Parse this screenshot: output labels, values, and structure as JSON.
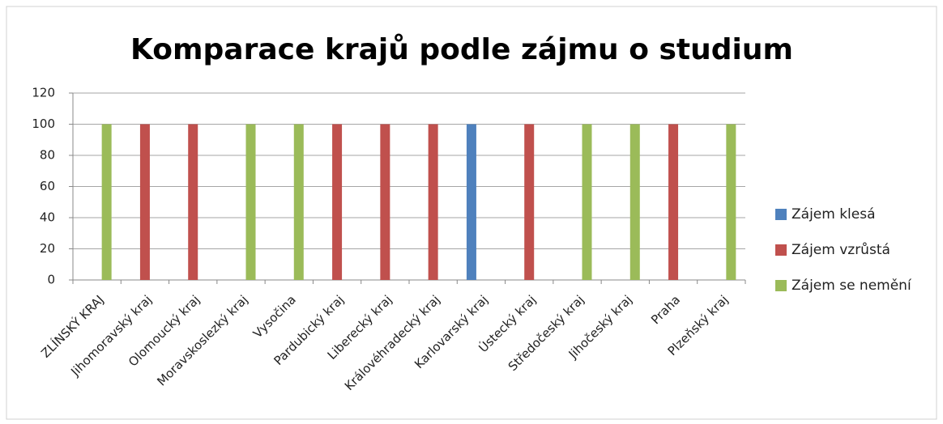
{
  "chart_data": {
    "type": "bar",
    "title": "Komparace krajů podle zájmu o studium",
    "categories": [
      "ZLÍNSKÝ KRAJ",
      "Jihomoravský kraj",
      "Olomoucký kraj",
      "Moravskoslezký kraj",
      "Vysočina",
      "Pardubický kraj",
      "Liberecký kraj",
      "Královéhradecký kraj",
      "Karlovarský kraj",
      "Ústecký kraj",
      "Středočeský kraj",
      "Jihočeský kraj",
      "Praha",
      "Plzeňský kraj"
    ],
    "series": [
      {
        "name": "Zájem klesá",
        "color": "#4f81bd",
        "values": [
          null,
          null,
          null,
          null,
          null,
          null,
          null,
          null,
          100,
          null,
          null,
          null,
          null,
          null
        ]
      },
      {
        "name": "Zájem vzrůstá",
        "color": "#c0504d",
        "values": [
          null,
          100,
          100,
          null,
          null,
          100,
          100,
          100,
          null,
          100,
          null,
          null,
          100,
          null
        ]
      },
      {
        "name": "Zájem se nemění",
        "color": "#9bbb59",
        "values": [
          100,
          null,
          null,
          100,
          100,
          null,
          null,
          null,
          null,
          null,
          100,
          100,
          null,
          100
        ]
      }
    ],
    "ylim": [
      0,
      120
    ],
    "yticks": [
      0,
      20,
      40,
      60,
      80,
      100,
      120
    ],
    "grid": true,
    "legend": "right"
  }
}
